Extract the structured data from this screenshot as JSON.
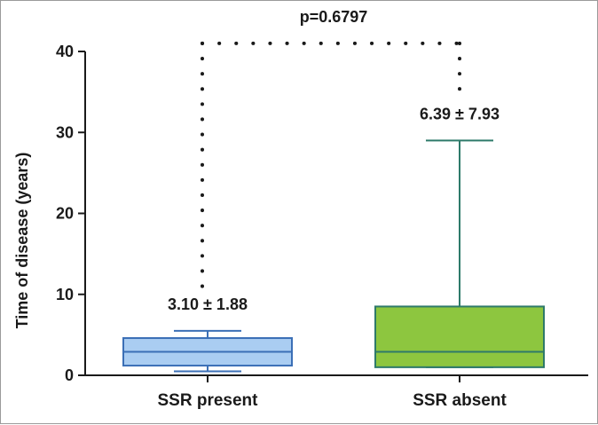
{
  "chart_data": {
    "type": "box",
    "title": "",
    "xlabel": "",
    "ylabel": "Time of disease (years)",
    "ylim": [
      0,
      40
    ],
    "yticks": [
      0,
      10,
      20,
      30,
      40
    ],
    "grid": false,
    "legend": "none",
    "categories": [
      "SSR present",
      "SSR absent"
    ],
    "series": [
      {
        "category": "SSR present",
        "min": 0.5,
        "q1": 1.2,
        "median": 2.9,
        "q3": 4.6,
        "max": 5.5,
        "annotation": "3.10 ± 1.88",
        "fill": "#aacdf2",
        "stroke": "#3b6fb6"
      },
      {
        "category": "SSR absent",
        "min": 1.0,
        "q1": 1.0,
        "median": 2.9,
        "q3": 8.5,
        "max": 29.0,
        "annotation": "6.39 ± 7.93",
        "fill": "#8dc63f",
        "stroke": "#2e7a6a"
      }
    ],
    "comparison": {
      "label": "p=0.6797",
      "y": 41
    }
  }
}
